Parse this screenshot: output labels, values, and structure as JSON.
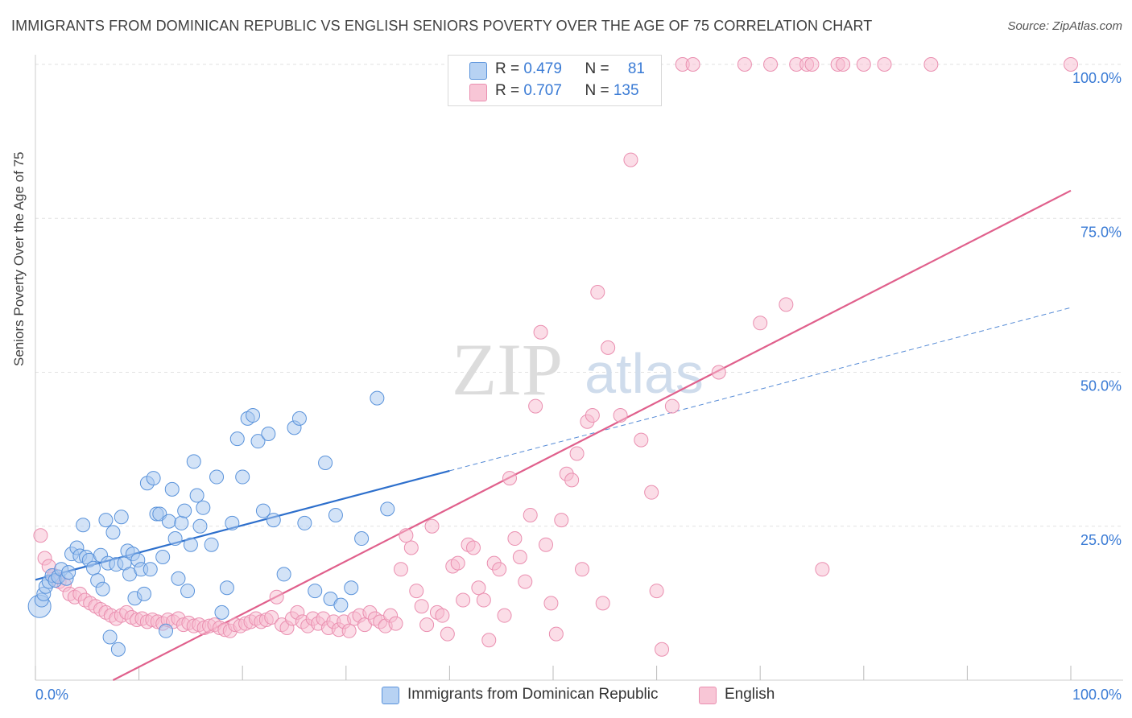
{
  "header": {
    "title": "IMMIGRANTS FROM DOMINICAN REPUBLIC VS ENGLISH SENIORS POVERTY OVER THE AGE OF 75 CORRELATION CHART",
    "source": "Source: ZipAtlas.com"
  },
  "watermark": {
    "zip": "ZIP",
    "atlas": "atlas"
  },
  "legend": {
    "series1": {
      "r_label": "R = ",
      "r_value": "0.479",
      "n_label": "N = ",
      "n_value": "81"
    },
    "series2": {
      "r_label": "R = ",
      "r_value": "0.707",
      "n_label": "N = ",
      "n_value": "135"
    }
  },
  "colors": {
    "blue_fill": "#a8c8f0",
    "blue_stroke": "#5a93db",
    "blue_line": "#2d6fcc",
    "pink_fill": "#f7bcd0",
    "pink_stroke": "#ea8fb0",
    "pink_line": "#e0608c",
    "tick_label": "#3a7bd5"
  },
  "chart_data": {
    "type": "scatter",
    "title": "IMMIGRANTS FROM DOMINICAN REPUBLIC VS ENGLISH SENIORS POVERTY OVER THE AGE OF 75 CORRELATION CHART",
    "xlabel": "",
    "ylabel": "Seniors Poverty Over the Age of 75",
    "xlim": [
      0,
      100
    ],
    "ylim": [
      0,
      100
    ],
    "x_tick_labels": [
      "0.0%",
      "100.0%"
    ],
    "y_tick_labels": [
      "25.0%",
      "50.0%",
      "75.0%",
      "100.0%"
    ],
    "y_ticks": [
      25,
      50,
      75,
      100
    ],
    "grid": true,
    "legend_position": "top-center",
    "series": [
      {
        "name": "Immigrants from Dominican Republic",
        "color": "#a8c8f0",
        "trend": {
          "x": [
            0,
            40
          ],
          "y": [
            16.3,
            34
          ],
          "dashed_extension": {
            "x": [
              40,
              100
            ],
            "y": [
              34,
              60.5
            ]
          }
        },
        "points": [
          [
            0.4,
            12
          ],
          [
            0.6,
            13
          ],
          [
            0.8,
            14
          ],
          [
            1.0,
            15.2
          ],
          [
            1.3,
            16
          ],
          [
            1.6,
            17
          ],
          [
            1.9,
            16.2
          ],
          [
            2.2,
            16.8
          ],
          [
            2.5,
            18
          ],
          [
            3.0,
            16.5
          ],
          [
            3.2,
            17.5
          ],
          [
            3.5,
            20.5
          ],
          [
            4.0,
            21.5
          ],
          [
            4.3,
            20.2
          ],
          [
            4.6,
            25.2
          ],
          [
            4.9,
            20.0
          ],
          [
            5.2,
            19.5
          ],
          [
            5.6,
            18.2
          ],
          [
            6.0,
            16.2
          ],
          [
            6.3,
            20.3
          ],
          [
            6.5,
            14.8
          ],
          [
            6.8,
            26
          ],
          [
            7.0,
            19
          ],
          [
            7.2,
            7
          ],
          [
            7.5,
            24
          ],
          [
            7.8,
            18.8
          ],
          [
            8.0,
            5
          ],
          [
            8.3,
            26.5
          ],
          [
            8.6,
            19
          ],
          [
            8.9,
            21
          ],
          [
            9.1,
            17.2
          ],
          [
            9.4,
            20.5
          ],
          [
            9.6,
            13.3
          ],
          [
            9.9,
            19.5
          ],
          [
            10.2,
            18
          ],
          [
            10.5,
            14
          ],
          [
            10.8,
            32
          ],
          [
            11.1,
            18
          ],
          [
            11.4,
            32.8
          ],
          [
            11.7,
            27
          ],
          [
            12.0,
            27
          ],
          [
            12.3,
            20
          ],
          [
            12.6,
            8
          ],
          [
            12.9,
            25.8
          ],
          [
            13.2,
            31
          ],
          [
            13.5,
            23
          ],
          [
            13.8,
            16.5
          ],
          [
            14.1,
            25.5
          ],
          [
            14.4,
            27.5
          ],
          [
            14.7,
            14.5
          ],
          [
            15.0,
            22
          ],
          [
            15.3,
            35.5
          ],
          [
            15.6,
            30
          ],
          [
            15.9,
            25
          ],
          [
            16.2,
            28
          ],
          [
            17.0,
            22
          ],
          [
            17.5,
            33
          ],
          [
            18.0,
            11
          ],
          [
            18.5,
            15
          ],
          [
            19.0,
            25.5
          ],
          [
            19.5,
            39.2
          ],
          [
            20.0,
            33
          ],
          [
            20.5,
            42.5
          ],
          [
            21.0,
            43
          ],
          [
            21.5,
            38.8
          ],
          [
            22.0,
            27.5
          ],
          [
            22.5,
            40
          ],
          [
            23.0,
            26
          ],
          [
            24.0,
            17.2
          ],
          [
            25.0,
            41
          ],
          [
            25.5,
            42.5
          ],
          [
            26.0,
            25.5
          ],
          [
            27.0,
            14.5
          ],
          [
            28.0,
            35.3
          ],
          [
            28.5,
            13.2
          ],
          [
            29.0,
            26.8
          ],
          [
            29.5,
            12.2
          ],
          [
            30.5,
            15
          ],
          [
            31.5,
            23
          ],
          [
            33.0,
            45.8
          ],
          [
            34.0,
            27.8
          ]
        ]
      },
      {
        "name": "English",
        "color": "#f7bcd0",
        "trend": {
          "x": [
            7.5,
            100
          ],
          "y": [
            0,
            79.5
          ]
        },
        "points": [
          [
            0.5,
            23.5
          ],
          [
            0.9,
            19.8
          ],
          [
            1.3,
            18.5
          ],
          [
            1.8,
            17
          ],
          [
            2.3,
            16
          ],
          [
            2.8,
            15.5
          ],
          [
            3.3,
            14
          ],
          [
            3.8,
            13.5
          ],
          [
            4.3,
            14
          ],
          [
            4.8,
            13
          ],
          [
            5.3,
            12.5
          ],
          [
            5.8,
            12
          ],
          [
            6.3,
            11.5
          ],
          [
            6.8,
            11
          ],
          [
            7.3,
            10.5
          ],
          [
            7.8,
            10
          ],
          [
            8.3,
            10.5
          ],
          [
            8.8,
            11
          ],
          [
            9.3,
            10.2
          ],
          [
            9.8,
            9.8
          ],
          [
            10.3,
            10
          ],
          [
            10.8,
            9.5
          ],
          [
            11.3,
            9.8
          ],
          [
            11.8,
            9.5
          ],
          [
            12.3,
            9.2
          ],
          [
            12.8,
            9.8
          ],
          [
            13.3,
            9.5
          ],
          [
            13.8,
            10
          ],
          [
            14.3,
            9
          ],
          [
            14.8,
            9.3
          ],
          [
            15.3,
            8.8
          ],
          [
            15.8,
            9
          ],
          [
            16.3,
            8.5
          ],
          [
            16.8,
            8.8
          ],
          [
            17.3,
            9
          ],
          [
            17.8,
            8.5
          ],
          [
            18.3,
            8.2
          ],
          [
            18.8,
            8
          ],
          [
            19.3,
            9
          ],
          [
            19.8,
            8.8
          ],
          [
            20.3,
            9.2
          ],
          [
            20.8,
            9.5
          ],
          [
            21.3,
            10
          ],
          [
            21.8,
            9.5
          ],
          [
            22.3,
            9.8
          ],
          [
            22.8,
            10.2
          ],
          [
            23.3,
            13.5
          ],
          [
            23.8,
            9
          ],
          [
            24.3,
            8.5
          ],
          [
            24.8,
            10
          ],
          [
            25.3,
            11
          ],
          [
            25.8,
            9.5
          ],
          [
            26.3,
            8.8
          ],
          [
            26.8,
            10
          ],
          [
            27.3,
            9.2
          ],
          [
            27.8,
            10
          ],
          [
            28.3,
            8.5
          ],
          [
            28.8,
            9.5
          ],
          [
            29.3,
            8.2
          ],
          [
            29.8,
            9.5
          ],
          [
            30.3,
            8
          ],
          [
            30.8,
            10
          ],
          [
            31.3,
            10.5
          ],
          [
            31.8,
            9
          ],
          [
            32.3,
            11
          ],
          [
            32.8,
            10
          ],
          [
            33.3,
            9.5
          ],
          [
            33.8,
            8.8
          ],
          [
            34.3,
            10.5
          ],
          [
            34.8,
            9.2
          ],
          [
            35.3,
            18
          ],
          [
            35.8,
            23.5
          ],
          [
            36.3,
            21.5
          ],
          [
            36.8,
            14.5
          ],
          [
            37.3,
            12
          ],
          [
            37.8,
            9
          ],
          [
            38.3,
            25
          ],
          [
            38.8,
            11
          ],
          [
            39.3,
            10.5
          ],
          [
            39.8,
            7.5
          ],
          [
            40.3,
            18.5
          ],
          [
            40.8,
            19
          ],
          [
            41.3,
            13
          ],
          [
            41.8,
            22
          ],
          [
            42.3,
            21.5
          ],
          [
            42.8,
            15
          ],
          [
            43.3,
            13
          ],
          [
            43.8,
            6.5
          ],
          [
            44.3,
            19
          ],
          [
            44.8,
            18
          ],
          [
            45.3,
            10.5
          ],
          [
            45.8,
            32.8
          ],
          [
            46.3,
            23
          ],
          [
            46.8,
            20
          ],
          [
            47.3,
            16
          ],
          [
            47.8,
            26.8
          ],
          [
            48.3,
            44.5
          ],
          [
            48.8,
            56.5
          ],
          [
            49.3,
            22
          ],
          [
            49.8,
            12.5
          ],
          [
            50.3,
            7.5
          ],
          [
            50.8,
            26
          ],
          [
            51.3,
            33.5
          ],
          [
            51.8,
            32.5
          ],
          [
            52.3,
            36.8
          ],
          [
            52.8,
            18
          ],
          [
            53.3,
            42
          ],
          [
            53.8,
            43
          ],
          [
            54.3,
            63
          ],
          [
            54.8,
            12.5
          ],
          [
            55.3,
            54
          ],
          [
            56.5,
            43
          ],
          [
            57.5,
            84.5
          ],
          [
            58.5,
            39
          ],
          [
            59.5,
            30.5
          ],
          [
            60.5,
            5
          ],
          [
            61.5,
            44.5
          ],
          [
            62.5,
            100
          ],
          [
            63.5,
            100
          ],
          [
            66.0,
            50
          ],
          [
            68.5,
            100
          ],
          [
            70.0,
            58
          ],
          [
            71.0,
            100
          ],
          [
            72.5,
            61
          ],
          [
            73.5,
            100
          ],
          [
            74.5,
            100
          ],
          [
            75.0,
            100
          ],
          [
            76.0,
            18
          ],
          [
            77.5,
            100
          ],
          [
            78.0,
            100
          ],
          [
            80.0,
            100
          ],
          [
            82.0,
            100
          ],
          [
            86.5,
            100
          ],
          [
            100,
            100
          ],
          [
            60.0,
            14.5
          ]
        ]
      }
    ]
  },
  "bottom_legend": {
    "item1": "Immigrants from Dominican Republic",
    "item2": "English"
  }
}
